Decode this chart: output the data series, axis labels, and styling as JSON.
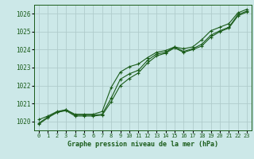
{
  "background_color": "#cce8e8",
  "grid_color": "#b0cccc",
  "line_color": "#1a5c1a",
  "marker_color": "#1a5c1a",
  "xlabel": "Graphe pression niveau de la mer (hPa)",
  "xlabel_color": "#1a5c1a",
  "ylabel_color": "#1a5c1a",
  "ylim": [
    1019.5,
    1026.5
  ],
  "xlim": [
    -0.5,
    23.5
  ],
  "yticks": [
    1020,
    1021,
    1022,
    1023,
    1024,
    1025,
    1026
  ],
  "xticks": [
    0,
    1,
    2,
    3,
    4,
    5,
    6,
    7,
    8,
    9,
    10,
    11,
    12,
    13,
    14,
    15,
    16,
    17,
    18,
    19,
    20,
    21,
    22,
    23
  ],
  "series1": [
    1020.1,
    1020.3,
    1020.55,
    1020.65,
    1020.4,
    1020.4,
    1020.4,
    1020.55,
    1021.9,
    1022.75,
    1023.05,
    1023.2,
    1023.55,
    1023.85,
    1023.95,
    1024.15,
    1024.05,
    1024.15,
    1024.55,
    1025.05,
    1025.25,
    1025.45,
    1026.05,
    1026.25
  ],
  "series2": [
    1019.9,
    1020.25,
    1020.5,
    1020.65,
    1020.35,
    1020.35,
    1020.35,
    1020.4,
    1021.3,
    1022.35,
    1022.65,
    1022.85,
    1023.4,
    1023.75,
    1023.85,
    1024.15,
    1023.9,
    1024.05,
    1024.3,
    1024.8,
    1025.05,
    1025.25,
    1025.95,
    1026.15
  ],
  "series3": [
    1019.85,
    1020.2,
    1020.5,
    1020.6,
    1020.3,
    1020.3,
    1020.3,
    1020.35,
    1021.1,
    1022.0,
    1022.4,
    1022.7,
    1023.25,
    1023.65,
    1023.8,
    1024.1,
    1023.85,
    1024.0,
    1024.2,
    1024.7,
    1025.0,
    1025.2,
    1025.88,
    1026.1
  ]
}
